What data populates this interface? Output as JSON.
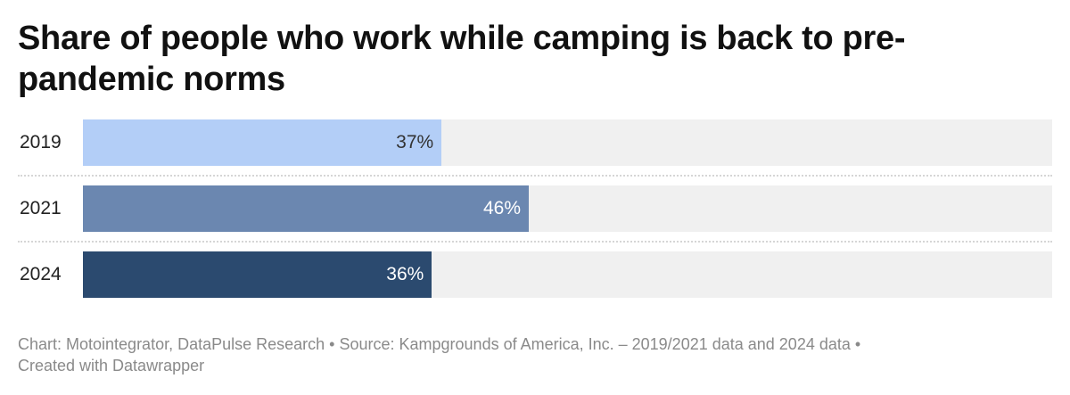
{
  "title": "Share of people who work while camping is back to pre-pandemic norms",
  "chart_data": {
    "type": "bar",
    "orientation": "horizontal",
    "categories": [
      "2019",
      "2021",
      "2024"
    ],
    "values": [
      37,
      46,
      36
    ],
    "value_labels": [
      "37%",
      "46%",
      "36%"
    ],
    "xlim": [
      0,
      100
    ],
    "bar_colors": [
      "#b3cef7",
      "#6b87b0",
      "#2b4a6f"
    ],
    "value_label_colors": [
      "#333333",
      "#ffffff",
      "#ffffff"
    ],
    "track_color": "#f0f0f0",
    "grid": false
  },
  "footer": {
    "line1": "Chart: Motointegrator, DataPulse Research • Source: Kampgrounds of America, Inc. – 2019/2021 data and 2024 data •",
    "line2": "Created with Datawrapper"
  }
}
